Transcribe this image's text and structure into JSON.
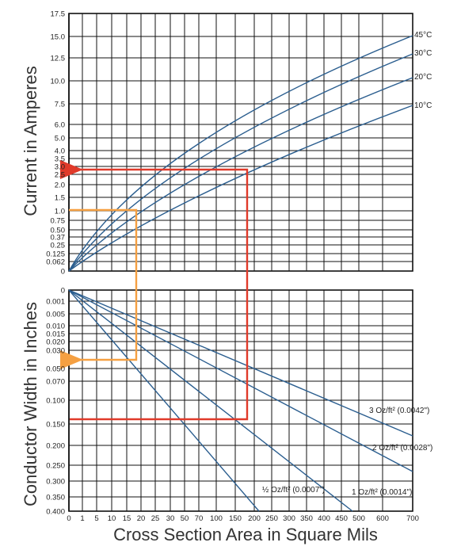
{
  "chart_data": {
    "type": "line",
    "xlabel": "Cross Section Area in Square Mils",
    "x_ticks": [
      "0",
      "1",
      "5",
      "10",
      "15",
      "20",
      "25",
      "30",
      "50",
      "70",
      "100",
      "150",
      "200",
      "250",
      "300",
      "350",
      "400",
      "450",
      "500",
      "600",
      "700"
    ],
    "upper": {
      "ylabel": "Current in Amperes",
      "y_ticks": [
        "17.5",
        "15.0",
        "12.5",
        "10.0",
        "7.5",
        "6.0",
        "5.0",
        "4.0",
        "3.5",
        "3.0",
        "2.5",
        "2.0",
        "1.5",
        "1.0",
        "0.75",
        "0.50",
        "0.37",
        "0.25",
        "0.125",
        "0.062",
        "0"
      ],
      "series": [
        {
          "name": "45°C",
          "values": [
            [
              0,
              0
            ],
            [
              20,
              1.2
            ],
            [
              100,
              3.6
            ],
            [
              200,
              6.1
            ],
            [
              400,
              10.2
            ],
            [
              700,
              15.0
            ]
          ]
        },
        {
          "name": "30°C",
          "values": [
            [
              0,
              0
            ],
            [
              20,
              1.0
            ],
            [
              100,
              3.0
            ],
            [
              200,
              5.1
            ],
            [
              400,
              8.6
            ],
            [
              700,
              13.0
            ]
          ]
        },
        {
          "name": "20°C",
          "values": [
            [
              0,
              0
            ],
            [
              20,
              0.8
            ],
            [
              100,
              2.6
            ],
            [
              200,
              4.4
            ],
            [
              400,
              7.2
            ],
            [
              700,
              11.0
            ]
          ]
        },
        {
          "name": "10°C",
          "values": [
            [
              0,
              0
            ],
            [
              20,
              0.6
            ],
            [
              100,
              2.1
            ],
            [
              200,
              3.5
            ],
            [
              400,
              5.7
            ],
            [
              700,
              8.5
            ]
          ]
        }
      ]
    },
    "lower": {
      "ylabel": "Conductor Width in Inches",
      "y_ticks": [
        "0",
        "0.001",
        "0.005",
        "0.010",
        "0.015",
        "0.020",
        "0.030",
        "0.050",
        "0.070",
        "0.100",
        "0.150",
        "0.200",
        "0.250",
        "0.300",
        "0.350",
        "0.400"
      ],
      "series": [
        {
          "name": "3 Oz/ft² (0.0042\")",
          "values": [
            [
              0,
              0
            ],
            [
              700,
              0.165
            ]
          ]
        },
        {
          "name": "2 Oz/ft² (0.0028\")",
          "values": [
            [
              0,
              0
            ],
            [
              700,
              0.25
            ]
          ]
        },
        {
          "name": "1 Oz/ft² (0.0014\")",
          "values": [
            [
              0,
              0
            ],
            [
              500,
              0.35
            ]
          ]
        },
        {
          "name": "½ Oz/ft² (0.0007\")",
          "values": [
            [
              0,
              0
            ],
            [
              300,
              0.35
            ]
          ]
        }
      ]
    },
    "examples": [
      {
        "color": "#e03a2a",
        "path": "current 2.7 A → 180 sq mils → width 0.14 in"
      },
      {
        "color": "#f5a042",
        "path": "current 1.0 A → 25 sq mils → width 0.04 in"
      }
    ],
    "colors": {
      "curves": "#2b5e8f",
      "grid": "#111111",
      "example_red": "#e03a2a",
      "example_orange": "#f5a042"
    }
  }
}
